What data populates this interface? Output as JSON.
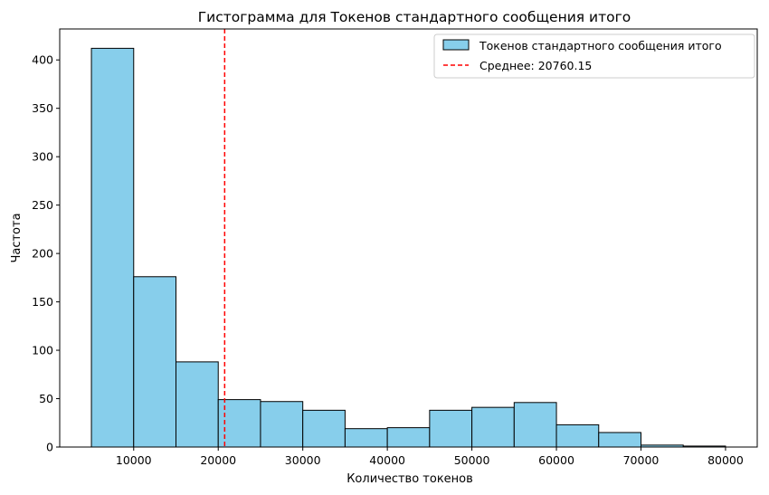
{
  "chart_data": {
    "type": "bar",
    "title": "Гистограмма для Токенов стандартного сообщения итого",
    "xlabel": "Количество токенов",
    "ylabel": "Частота",
    "xlim": [
      1250,
      83750
    ],
    "ylim": [
      0,
      432
    ],
    "xticks": [
      10000,
      20000,
      30000,
      40000,
      50000,
      60000,
      70000,
      80000
    ],
    "yticks": [
      0,
      50,
      100,
      150,
      200,
      250,
      300,
      350,
      400
    ],
    "bin_edges": [
      5000,
      10000,
      15000,
      20000,
      25000,
      30000,
      35000,
      40000,
      45000,
      50000,
      55000,
      60000,
      65000,
      70000,
      75000,
      80000
    ],
    "series": [
      {
        "name": "Токенов стандартного сообщения итого",
        "color": "#87CEEB",
        "edgecolor": "#000000",
        "values": [
          412,
          176,
          88,
          49,
          47,
          38,
          19,
          20,
          38,
          41,
          46,
          23,
          15,
          2,
          1
        ]
      }
    ],
    "mean_line": {
      "value": 20760.15,
      "label": "Среднее: 20760.15",
      "color": "#FF0000",
      "style": "dashed"
    },
    "legend": {
      "placement": "top-right",
      "entries": [
        "Токенов стандартного сообщения итого",
        "Среднее: 20760.15"
      ]
    },
    "grid": false
  }
}
